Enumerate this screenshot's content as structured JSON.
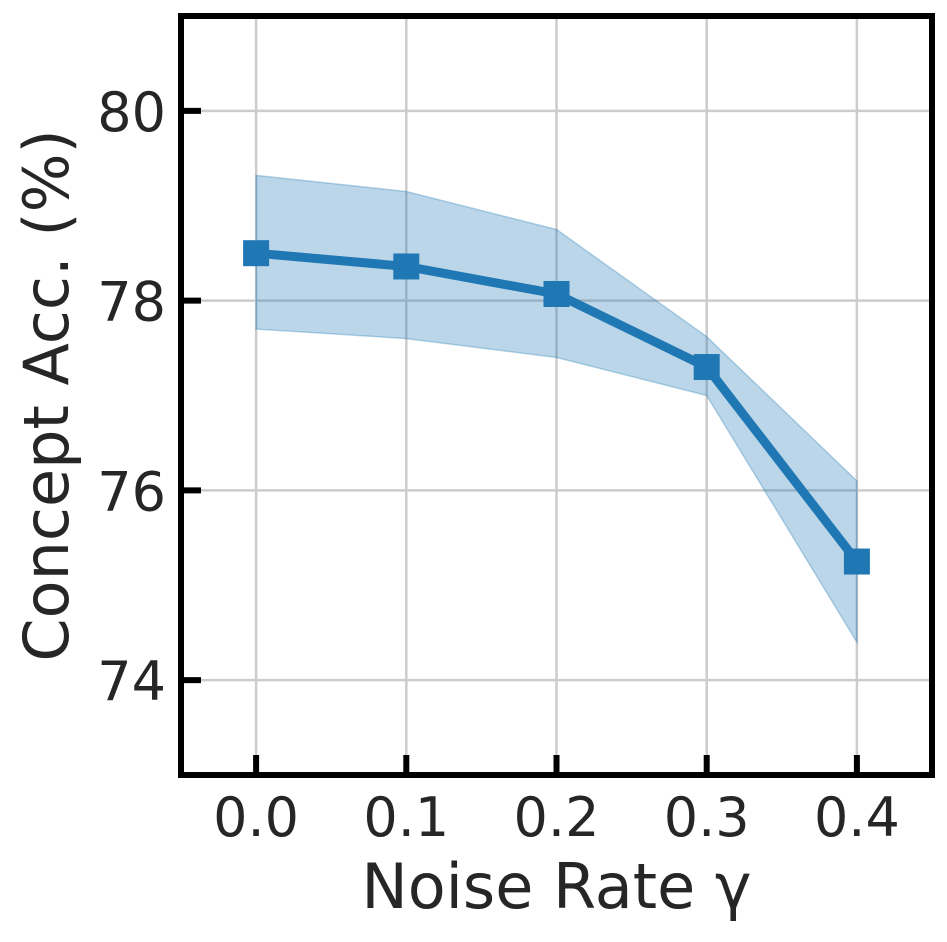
{
  "chart_data": {
    "type": "line",
    "title": "",
    "xlabel": "Noise Rate γ",
    "ylabel": "Concept Acc. (%)",
    "x": [
      0.0,
      0.1,
      0.2,
      0.3,
      0.4
    ],
    "x_tick_labels": [
      "0.0",
      "0.1",
      "0.2",
      "0.3",
      "0.4"
    ],
    "y_ticks": [
      74,
      76,
      78,
      80
    ],
    "y_tick_labels": [
      "74",
      "76",
      "78",
      "80"
    ],
    "xlim": [
      -0.05,
      0.45
    ],
    "ylim": [
      73.0,
      81.0
    ],
    "grid": true,
    "series": [
      {
        "name": "Concept Acc.",
        "values": [
          78.5,
          78.36,
          78.07,
          77.3,
          75.25
        ],
        "lower": [
          77.7,
          77.6,
          77.4,
          77.0,
          74.4
        ],
        "upper": [
          79.32,
          79.15,
          78.75,
          77.62,
          76.1
        ],
        "color": "#1f77b4",
        "band_color": "#1f77b4",
        "marker": "square"
      }
    ]
  }
}
